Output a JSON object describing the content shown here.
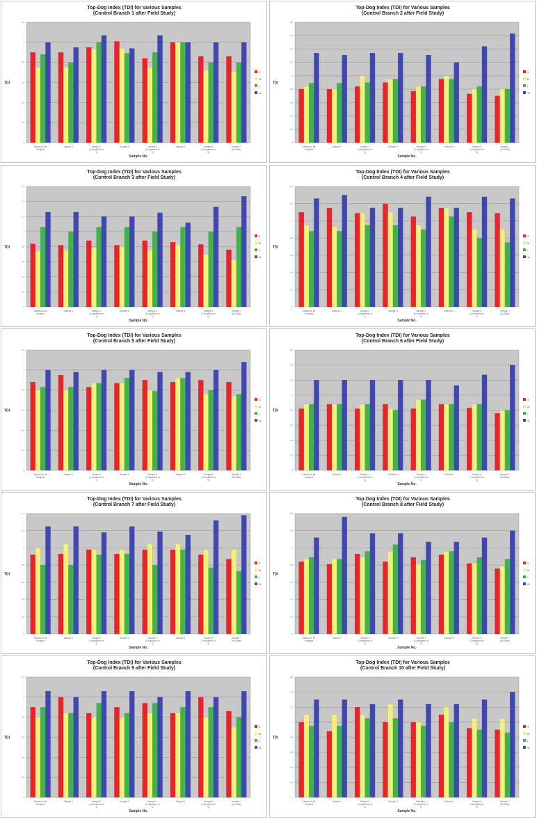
{
  "colors": {
    "series": [
      "#e8232a",
      "#f5f07a",
      "#3db54a",
      "#3f48b0"
    ],
    "plot_bg": "#c8c8c8",
    "grid": "#8f8f8f",
    "frame": "#b5b5b5"
  },
  "legend_labels": [
    "S",
    "M",
    "L",
    "XL"
  ],
  "categories": [
    [
      "Median of all",
      "Samples"
    ],
    [
      "Sample 1"
    ],
    [
      "Sample 2",
      "(Completion of",
      "1)"
    ],
    [
      "Sample 3"
    ],
    [
      "Sample 4",
      "(Completion of",
      "3)"
    ],
    [
      "Sample 5"
    ],
    [
      "Sample 6",
      "(Completion of",
      "5)"
    ],
    [
      "Sample 7",
      "(All Data)"
    ]
  ],
  "chart_data": [
    {
      "type": "bar",
      "title": [
        "Top-Dog Index (TDI) for Various Samples",
        "(Control Branch 1 after Field Study)"
      ],
      "xlabel": "Sample No.",
      "ylabel": "TDI",
      "ylim": [
        0,
        1.2
      ],
      "yticks": [
        "0",
        "0.2",
        "0.4",
        "0.6",
        "0.8",
        "1",
        "1.2"
      ],
      "grid": true,
      "legend": "right",
      "series": [
        {
          "name": "S",
          "values": [
            0.9,
            0.9,
            0.95,
            1.01,
            0.84,
            1.0,
            0.86,
            0.86
          ]
        },
        {
          "name": "M",
          "values": [
            0.75,
            0.75,
            0.93,
            0.94,
            0.75,
            1.0,
            0.72,
            0.71
          ]
        },
        {
          "name": "L",
          "values": [
            0.88,
            0.8,
            1.0,
            0.89,
            0.9,
            1.0,
            0.8,
            0.8
          ]
        },
        {
          "name": "XL",
          "values": [
            1.0,
            0.95,
            1.07,
            0.94,
            1.07,
            1.0,
            1.0,
            1.0
          ]
        }
      ]
    },
    {
      "type": "bar",
      "title": [
        "Top-Dog Index (TDI) for Various Samples",
        "(Control Branch 2 after Field Study)"
      ],
      "xlabel": "Sample No.",
      "ylabel": "TDI",
      "ylim": [
        0,
        1.8
      ],
      "yticks": [
        "0",
        "0.2",
        "0.4",
        "0.6",
        "0.8",
        "1",
        "1.2",
        "1.4",
        "1.6",
        "1.8"
      ],
      "grid": true,
      "legend": "right",
      "series": [
        {
          "name": "S",
          "values": [
            0.8,
            0.8,
            0.84,
            0.9,
            0.77,
            0.95,
            0.73,
            0.7
          ]
        },
        {
          "name": "M",
          "values": [
            0.84,
            0.8,
            1.0,
            0.95,
            0.84,
            1.0,
            0.8,
            0.8
          ]
        },
        {
          "name": "L",
          "values": [
            0.89,
            0.89,
            0.9,
            0.95,
            0.84,
            0.95,
            0.84,
            0.8
          ]
        },
        {
          "name": "XL",
          "values": [
            1.34,
            1.31,
            1.34,
            1.34,
            1.31,
            1.2,
            1.44,
            1.63
          ]
        }
      ]
    },
    {
      "type": "bar",
      "title": [
        "Top-Dog Index (TDI) for Various Samples",
        "(Control Branch 3 after Field Study)"
      ],
      "xlabel": "Sample No.",
      "ylabel": "TDI",
      "ylim": [
        0,
        1.6
      ],
      "yticks": [
        "0",
        "0.2",
        "0.4",
        "0.6",
        "0.8",
        "1",
        "1.2",
        "1.4",
        "1.6"
      ],
      "grid": true,
      "legend": "right",
      "series": [
        {
          "name": "S",
          "values": [
            0.84,
            0.82,
            0.88,
            0.82,
            0.88,
            0.86,
            0.83,
            0.76
          ]
        },
        {
          "name": "M",
          "values": [
            0.74,
            0.75,
            0.79,
            0.8,
            0.75,
            0.82,
            0.7,
            0.62
          ]
        },
        {
          "name": "L",
          "values": [
            1.06,
            1.0,
            1.06,
            1.06,
            1.0,
            1.06,
            1.0,
            1.06
          ]
        },
        {
          "name": "XL",
          "values": [
            1.26,
            1.26,
            1.2,
            1.2,
            1.25,
            1.12,
            1.33,
            1.47
          ]
        }
      ]
    },
    {
      "type": "bar",
      "title": [
        "Top-Dog Index (TDI) for Various Samples",
        "(Control Branch 4 after Field Study)"
      ],
      "xlabel": "Sample No.",
      "ylabel": "TDI",
      "ylim": [
        0,
        1.4
      ],
      "yticks": [
        "0",
        "0.2",
        "0.4",
        "0.6",
        "0.8",
        "1",
        "1.2",
        "1.4"
      ],
      "grid": true,
      "legend": "right",
      "series": [
        {
          "name": "S",
          "values": [
            1.1,
            1.15,
            1.09,
            1.2,
            1.05,
            1.15,
            1.1,
            1.09
          ]
        },
        {
          "name": "M",
          "values": [
            0.95,
            0.93,
            1.09,
            1.1,
            0.95,
            1.15,
            0.9,
            0.9
          ]
        },
        {
          "name": "L",
          "values": [
            0.88,
            0.88,
            0.95,
            0.95,
            0.9,
            1.05,
            0.8,
            0.75
          ]
        },
        {
          "name": "XL",
          "values": [
            1.26,
            1.3,
            1.15,
            1.15,
            1.28,
            1.15,
            1.28,
            1.26
          ]
        }
      ]
    },
    {
      "type": "bar",
      "title": [
        "Top-Dog Index (TDI) for Various Samples",
        "(Control Branch 5 after Field Study)"
      ],
      "xlabel": "Sample No.",
      "ylabel": "TDI",
      "ylim": [
        0,
        1.2
      ],
      "yticks": [
        "0",
        "0.2",
        "0.4",
        "0.6",
        "0.8",
        "1",
        "1.2"
      ],
      "grid": true,
      "legend": "right",
      "series": [
        {
          "name": "S",
          "values": [
            0.88,
            0.95,
            0.83,
            0.87,
            0.9,
            0.88,
            0.9,
            0.88
          ]
        },
        {
          "name": "M",
          "values": [
            0.8,
            0.8,
            0.87,
            0.87,
            0.8,
            0.92,
            0.76,
            0.74
          ]
        },
        {
          "name": "L",
          "values": [
            0.83,
            0.83,
            0.87,
            0.92,
            0.79,
            0.92,
            0.8,
            0.76
          ]
        },
        {
          "name": "XL",
          "values": [
            1.0,
            0.98,
            1.0,
            1.0,
            0.98,
            0.98,
            1.0,
            1.08
          ]
        }
      ]
    },
    {
      "type": "bar",
      "title": [
        "Top-Dog Index (TDI) for Various Samples",
        "(Control Branch 6 after Field Study)"
      ],
      "xlabel": "Sample No.",
      "ylabel": "TDI",
      "ylim": [
        0,
        1.6
      ],
      "yticks": [
        "0",
        "0.2",
        "0.4",
        "0.6",
        "0.8",
        "1",
        "1.2",
        "1.4",
        "1.6"
      ],
      "grid": true,
      "legend": "right",
      "series": [
        {
          "name": "S",
          "values": [
            0.82,
            0.88,
            0.82,
            0.88,
            0.82,
            0.88,
            0.83,
            0.76
          ]
        },
        {
          "name": "M",
          "values": [
            0.88,
            0.88,
            0.88,
            0.82,
            0.94,
            0.88,
            0.88,
            0.8
          ]
        },
        {
          "name": "L",
          "values": [
            0.88,
            0.88,
            0.88,
            0.8,
            0.94,
            0.88,
            0.88,
            0.8
          ]
        },
        {
          "name": "XL",
          "values": [
            1.2,
            1.2,
            1.2,
            1.2,
            1.2,
            1.13,
            1.27,
            1.4
          ]
        }
      ]
    },
    {
      "type": "bar",
      "title": [
        "Top-Dog Index (TDI) for Various Samples",
        "(Control Branch 7 after Field Study)"
      ],
      "xlabel": "Sample No.",
      "ylabel": "TDI",
      "ylim": [
        0,
        1.4
      ],
      "yticks": [
        "0",
        "0.2",
        "0.4",
        "0.6",
        "0.8",
        "1",
        "1.2",
        "1.4"
      ],
      "grid": true,
      "legend": "right",
      "series": [
        {
          "name": "S",
          "values": [
            0.92,
            0.93,
            0.98,
            0.93,
            0.98,
            0.98,
            0.92,
            0.87
          ]
        },
        {
          "name": "M",
          "values": [
            1.0,
            1.05,
            0.98,
            0.98,
            1.05,
            1.05,
            0.98,
            0.98
          ]
        },
        {
          "name": "L",
          "values": [
            0.8,
            0.8,
            0.92,
            0.93,
            0.8,
            0.98,
            0.77,
            0.73
          ]
        },
        {
          "name": "XL",
          "values": [
            1.25,
            1.25,
            1.18,
            1.25,
            1.19,
            1.15,
            1.32,
            1.38
          ]
        }
      ]
    },
    {
      "type": "bar",
      "title": [
        "Top-Dog Index (TDI) for Various Samples",
        "(Control Branch 8 after Field Study)"
      ],
      "xlabel": "Sample No.",
      "ylabel": "TDI",
      "ylim": [
        0,
        1.4
      ],
      "yticks": [
        "0",
        "0.2",
        "0.4",
        "0.6",
        "0.8",
        "1",
        "1.2",
        "1.4"
      ],
      "grid": true,
      "legend": "right",
      "series": [
        {
          "name": "S",
          "values": [
            0.84,
            0.81,
            0.93,
            0.84,
            0.89,
            0.92,
            0.82,
            0.76
          ]
        },
        {
          "name": "M",
          "values": [
            0.87,
            0.87,
            0.89,
            0.96,
            0.81,
            0.96,
            0.82,
            0.79
          ]
        },
        {
          "name": "L",
          "values": [
            0.89,
            0.87,
            0.96,
            1.04,
            0.86,
            0.96,
            0.89,
            0.87
          ]
        },
        {
          "name": "XL",
          "values": [
            1.12,
            1.36,
            1.17,
            1.17,
            1.07,
            1.07,
            1.12,
            1.2
          ]
        }
      ]
    },
    {
      "type": "bar",
      "title": [
        "Top-Dog Index (TDI) for Various Samples",
        "(Control Branch 9 after Field Study)"
      ],
      "xlabel": "Sample No.",
      "ylabel": "TDI",
      "ylim": [
        0,
        1.2
      ],
      "yticks": [
        "0",
        "0.2",
        "0.4",
        "0.6",
        "0.8",
        "1",
        "1.2"
      ],
      "grid": true,
      "legend": "right",
      "series": [
        {
          "name": "S",
          "values": [
            0.9,
            1.0,
            0.84,
            0.9,
            0.94,
            0.84,
            1.0,
            0.86
          ]
        },
        {
          "name": "M",
          "values": [
            0.8,
            0.84,
            0.8,
            0.8,
            0.84,
            0.84,
            0.8,
            0.7
          ]
        },
        {
          "name": "L",
          "values": [
            0.9,
            0.84,
            0.94,
            0.84,
            0.94,
            0.9,
            0.9,
            0.8
          ]
        },
        {
          "name": "XL",
          "values": [
            1.06,
            1.0,
            1.06,
            1.06,
            1.0,
            1.06,
            1.0,
            1.06
          ]
        }
      ]
    },
    {
      "type": "bar",
      "title": [
        "Top-Dog Index (TDI) for Various Samples",
        "(Control Branch 10 after Field Study)"
      ],
      "xlabel": "Sample No.",
      "ylabel": "TDI",
      "ylim": [
        0,
        1.6
      ],
      "yticks": [
        "0",
        "0.2",
        "0.4",
        "0.6",
        "0.8",
        "1",
        "1.2",
        "1.4",
        "1.6"
      ],
      "grid": true,
      "legend": "right",
      "series": [
        {
          "name": "S",
          "values": [
            1.0,
            0.88,
            1.2,
            1.0,
            1.0,
            1.1,
            0.92,
            0.9
          ]
        },
        {
          "name": "M",
          "values": [
            1.1,
            1.1,
            1.1,
            1.24,
            1.0,
            1.2,
            1.05,
            1.05
          ]
        },
        {
          "name": "L",
          "values": [
            0.95,
            0.95,
            1.05,
            1.05,
            0.95,
            1.0,
            0.9,
            0.86
          ]
        },
        {
          "name": "XL",
          "values": [
            1.3,
            1.3,
            1.24,
            1.3,
            1.24,
            1.24,
            1.3,
            1.4
          ]
        }
      ]
    }
  ]
}
